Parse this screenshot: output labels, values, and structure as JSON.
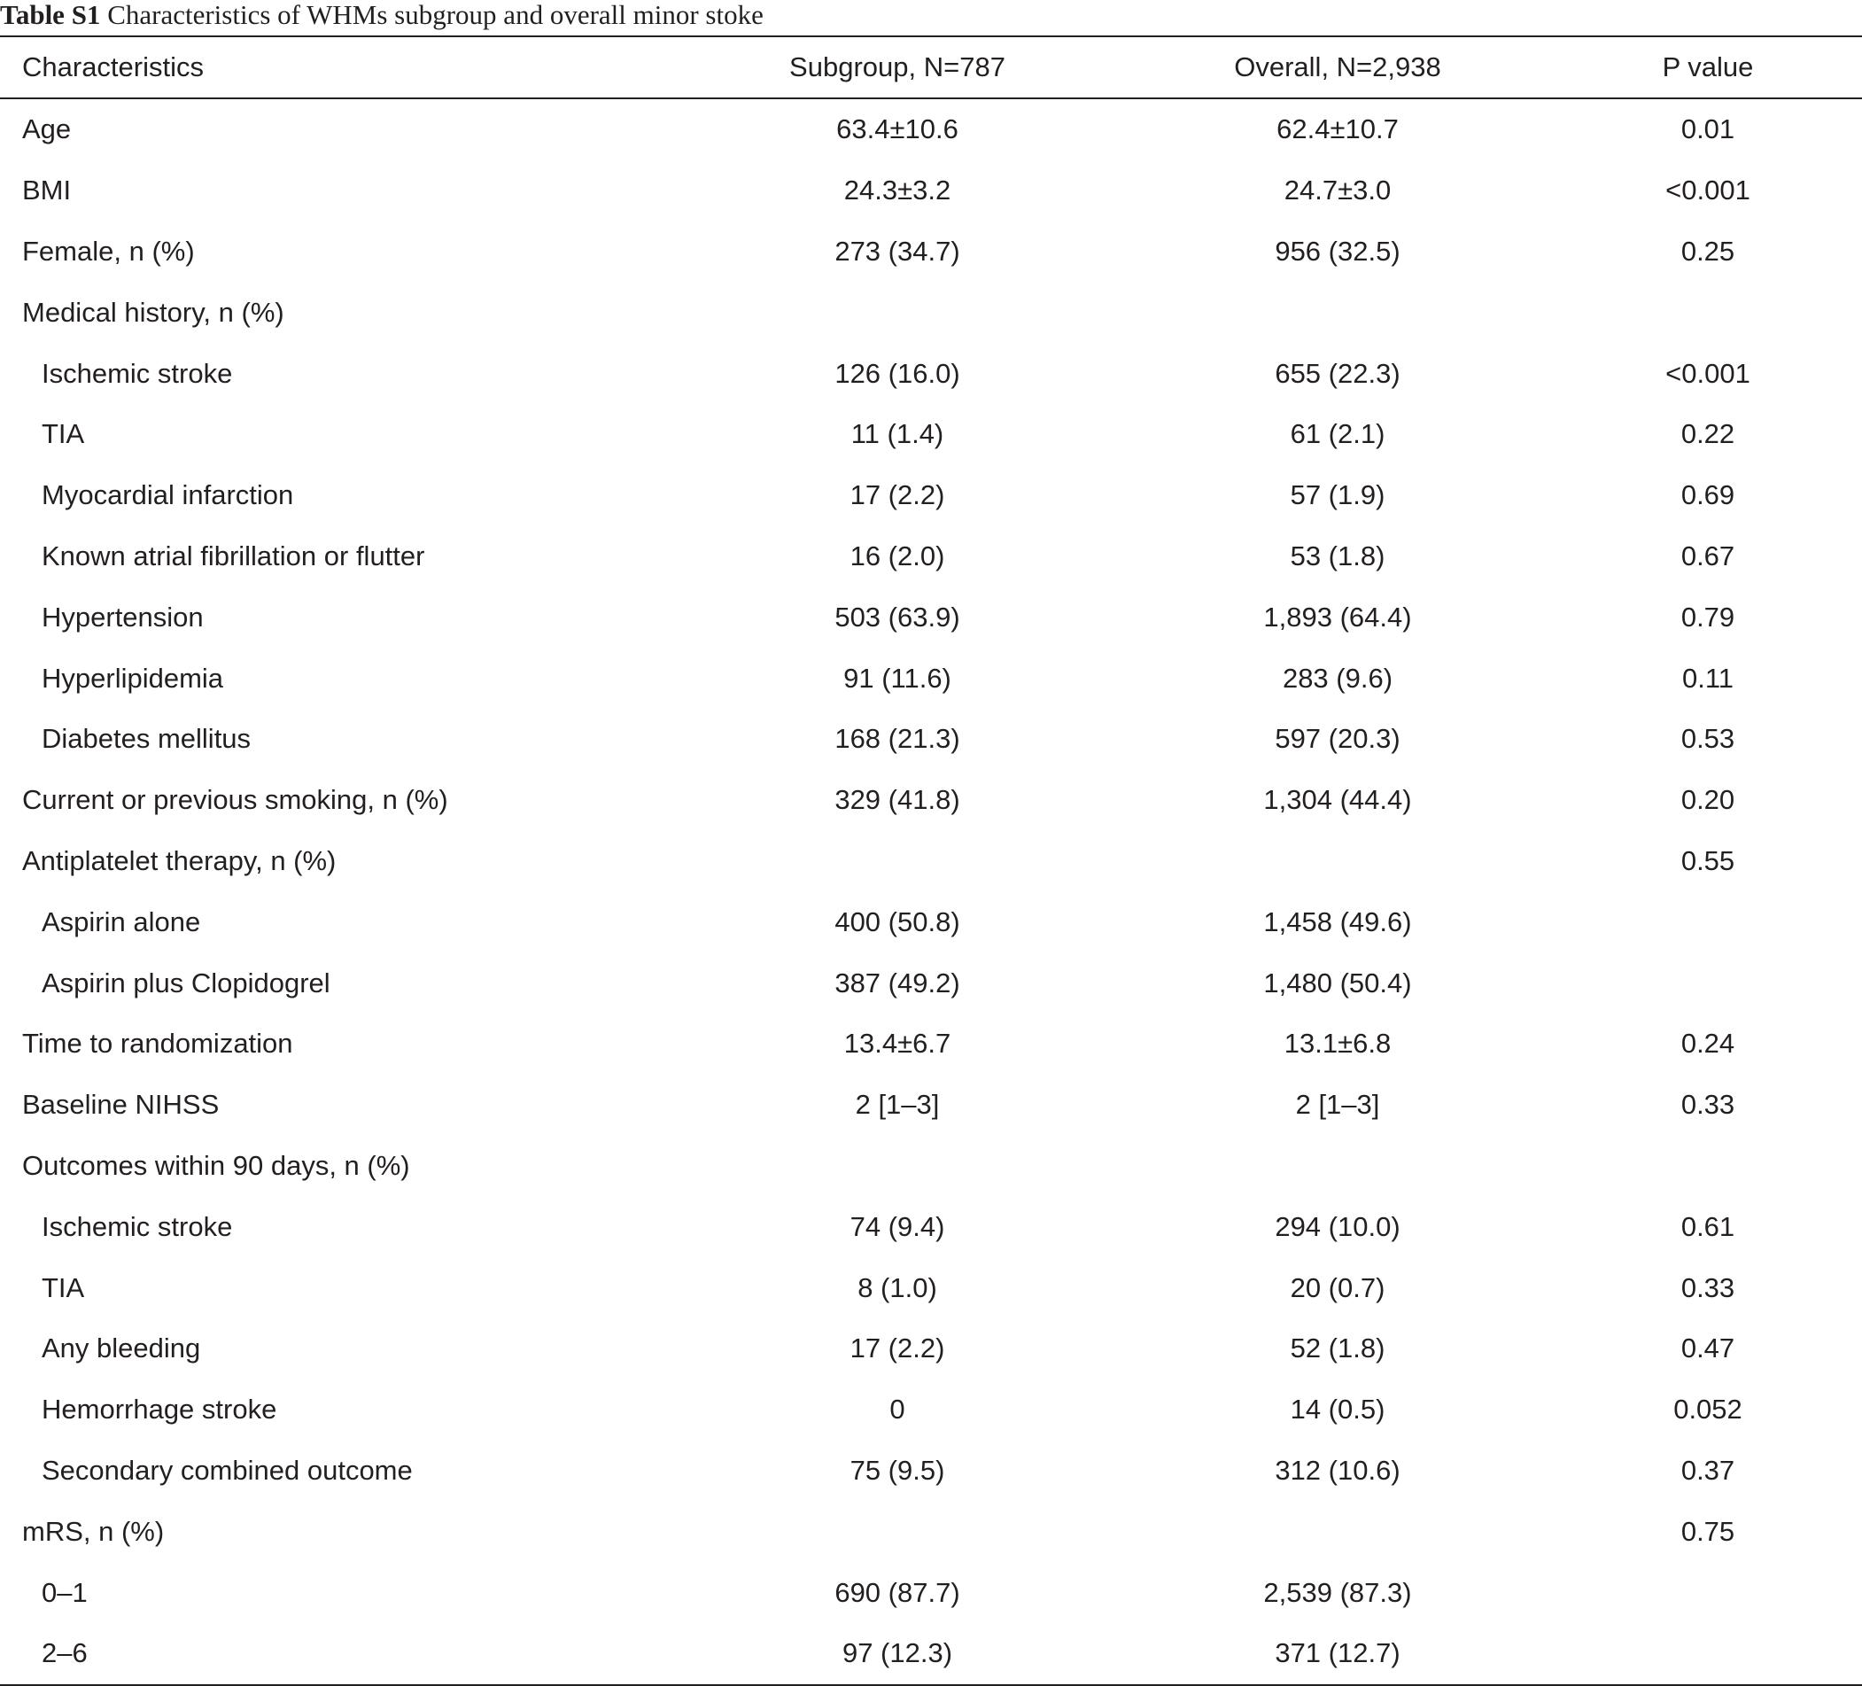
{
  "caption": {
    "label": "Table S1",
    "title": "Characteristics of WHMs subgroup and overall minor stoke"
  },
  "columns": [
    "Characteristics",
    "Subgroup, N=787",
    "Overall, N=2,938",
    "P value"
  ],
  "rows": [
    {
      "label": "Age",
      "indent": false,
      "subgroup": "63.4±10.6",
      "overall": "62.4±10.7",
      "p": "0.01"
    },
    {
      "label": "BMI",
      "indent": false,
      "subgroup": "24.3±3.2",
      "overall": "24.7±3.0",
      "p": "<0.001"
    },
    {
      "label": "Female, n (%)",
      "indent": false,
      "subgroup": "273 (34.7)",
      "overall": "956 (32.5)",
      "p": "0.25"
    },
    {
      "label": "Medical history, n (%)",
      "indent": false,
      "subgroup": "",
      "overall": "",
      "p": ""
    },
    {
      "label": "Ischemic stroke",
      "indent": true,
      "subgroup": "126 (16.0)",
      "overall": "655 (22.3)",
      "p": "<0.001"
    },
    {
      "label": "TIA",
      "indent": true,
      "subgroup": "11 (1.4)",
      "overall": "61 (2.1)",
      "p": "0.22"
    },
    {
      "label": "Myocardial infarction",
      "indent": true,
      "subgroup": "17 (2.2)",
      "overall": "57 (1.9)",
      "p": "0.69"
    },
    {
      "label": "Known atrial fibrillation or flutter",
      "indent": true,
      "subgroup": "16 (2.0)",
      "overall": "53 (1.8)",
      "p": "0.67"
    },
    {
      "label": "Hypertension",
      "indent": true,
      "subgroup": "503 (63.9)",
      "overall": "1,893 (64.4)",
      "p": "0.79"
    },
    {
      "label": "Hyperlipidemia",
      "indent": true,
      "subgroup": "91 (11.6)",
      "overall": "283 (9.6)",
      "p": "0.11"
    },
    {
      "label": "Diabetes mellitus",
      "indent": true,
      "subgroup": "168 (21.3)",
      "overall": "597 (20.3)",
      "p": "0.53"
    },
    {
      "label": "Current or previous smoking, n (%)",
      "indent": false,
      "subgroup": "329 (41.8)",
      "overall": "1,304 (44.4)",
      "p": "0.20"
    },
    {
      "label": "Antiplatelet therapy, n (%)",
      "indent": false,
      "subgroup": "",
      "overall": "",
      "p": "0.55"
    },
    {
      "label": "Aspirin alone",
      "indent": true,
      "subgroup": "400 (50.8)",
      "overall": "1,458 (49.6)",
      "p": ""
    },
    {
      "label": "Aspirin plus Clopidogrel",
      "indent": true,
      "subgroup": "387 (49.2)",
      "overall": "1,480 (50.4)",
      "p": ""
    },
    {
      "label": "Time to randomization",
      "indent": false,
      "subgroup": "13.4±6.7",
      "overall": "13.1±6.8",
      "p": "0.24"
    },
    {
      "label": "Baseline NIHSS",
      "indent": false,
      "subgroup": "2 [1–3]",
      "overall": "2 [1–3]",
      "p": "0.33"
    },
    {
      "label": "Outcomes within 90 days, n (%)",
      "indent": false,
      "subgroup": "",
      "overall": "",
      "p": ""
    },
    {
      "label": "Ischemic stroke",
      "indent": true,
      "subgroup": "74 (9.4)",
      "overall": "294 (10.0)",
      "p": "0.61"
    },
    {
      "label": "TIA",
      "indent": true,
      "subgroup": "8 (1.0)",
      "overall": "20 (0.7)",
      "p": "0.33"
    },
    {
      "label": "Any bleeding",
      "indent": true,
      "subgroup": "17 (2.2)",
      "overall": "52 (1.8)",
      "p": "0.47"
    },
    {
      "label": "Hemorrhage stroke",
      "indent": true,
      "subgroup": "0",
      "overall": "14 (0.5)",
      "p": "0.052"
    },
    {
      "label": "Secondary combined outcome",
      "indent": true,
      "subgroup": "75 (9.5)",
      "overall": "312 (10.6)",
      "p": "0.37"
    },
    {
      "label": "mRS, n (%)",
      "indent": false,
      "subgroup": "",
      "overall": "",
      "p": "0.75"
    },
    {
      "label": "0–1",
      "indent": true,
      "subgroup": "690 (87.7)",
      "overall": "2,539 (87.3)",
      "p": ""
    },
    {
      "label": "2–6",
      "indent": true,
      "subgroup": "97 (12.3)",
      "overall": "371 (12.7)",
      "p": ""
    }
  ]
}
